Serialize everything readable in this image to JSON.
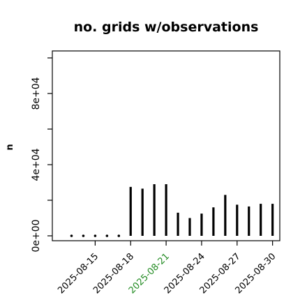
{
  "chart_data": {
    "type": "bar",
    "title": "no. grids w/observations",
    "xlabel": "",
    "ylabel": "n",
    "ylim": [
      0,
      105000
    ],
    "yticks": [
      0,
      20000,
      40000,
      60000,
      80000,
      100000
    ],
    "ytick_labels": [
      "0e+00",
      "4e+04",
      "8e+04"
    ],
    "ytick_label_values": [
      0,
      40000,
      80000
    ],
    "grid": false,
    "legend": "none",
    "bar_color": "#000000",
    "highlight_color": "#228B22",
    "categories": [
      "2025-08-13",
      "2025-08-14",
      "2025-08-15",
      "2025-08-16",
      "2025-08-17",
      "2025-08-18",
      "2025-08-19",
      "2025-08-20",
      "2025-08-21",
      "2025-08-22",
      "2025-08-23",
      "2025-08-24",
      "2025-08-25",
      "2025-08-26",
      "2025-08-27",
      "2025-08-28",
      "2025-08-29",
      "2025-08-30"
    ],
    "values": [
      300,
      300,
      300,
      300,
      300,
      27500,
      26500,
      29000,
      29000,
      13000,
      10000,
      12500,
      16000,
      23000,
      17500,
      16500,
      18000,
      18000
    ],
    "xtick_dates": [
      "2025-08-15",
      "2025-08-18",
      "2025-08-21",
      "2025-08-24",
      "2025-08-27",
      "2025-08-30"
    ],
    "xtick_label_colors": [
      "#000000",
      "#000000",
      "#228B22",
      "#000000",
      "#000000",
      "#000000"
    ]
  }
}
